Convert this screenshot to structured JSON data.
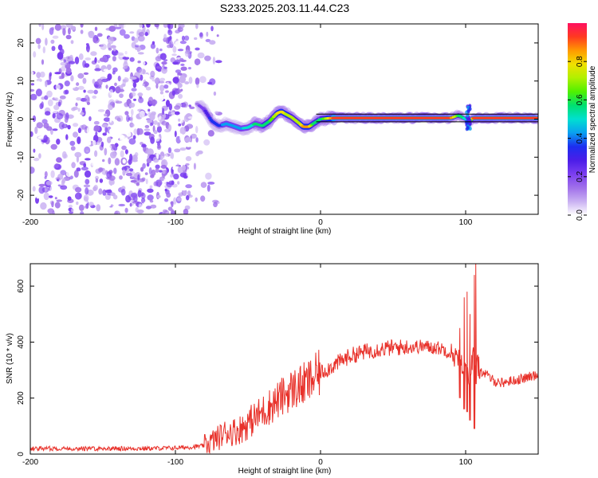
{
  "title": "S233.2025.203.11.44.C23",
  "chart_data": [
    {
      "type": "heatmap",
      "xlabel": "Height of straight line (km)",
      "ylabel": "Frequency (Hz)",
      "xlim": [
        -200,
        150
      ],
      "ylim": [
        -25,
        25
      ],
      "x_ticks": [
        -200,
        -100,
        0,
        100
      ],
      "y_ticks": [
        -20,
        -10,
        0,
        10,
        20
      ],
      "grid": false,
      "colorbar": {
        "label": "Normalized spectral amplitude",
        "range": [
          0,
          1
        ],
        "ticks": [
          "0.0",
          "0.2",
          "0.4",
          "0.6",
          "0.8"
        ],
        "colormap": [
          "#ffffff",
          "#c9b0f2",
          "#a070ea",
          "#7b3ef0",
          "#4b1ee8",
          "#1c2ef0",
          "#0aa0f0",
          "#00e0d0",
          "#00e070",
          "#50f000",
          "#b0f000",
          "#f0e000",
          "#ff9a00",
          "#ff3a20",
          "#ff1060"
        ]
      },
      "ridge": {
        "name": "frequency-ridge",
        "x": [
          -85,
          -80,
          -75,
          -70,
          -65,
          -60,
          -55,
          -50,
          -45,
          -40,
          -35,
          -30,
          -27,
          -25,
          -20,
          -15,
          -12,
          -8,
          -5,
          0,
          5,
          10,
          20,
          40,
          60,
          80,
          90,
          95,
          100,
          103,
          105,
          110,
          130,
          150
        ],
        "y": [
          4,
          2.5,
          -0.5,
          -1.8,
          -1.2,
          -1.8,
          -2.5,
          -2.2,
          -1.2,
          -1.8,
          -0.5,
          1.5,
          2,
          1.5,
          0.5,
          -1,
          -2,
          -2,
          -1.2,
          0,
          0.2,
          0.3,
          0.3,
          0.3,
          0.3,
          0.3,
          0.3,
          1,
          0,
          -0.5,
          0.3,
          0.3,
          0.3,
          0.3
        ]
      },
      "ridge_amplitude": [
        0.15,
        0.25,
        0.35,
        0.35,
        0.45,
        0.4,
        0.45,
        0.5,
        0.55,
        0.55,
        0.6,
        0.75,
        0.8,
        0.75,
        0.7,
        0.7,
        0.85,
        0.85,
        0.6,
        0.55,
        0.75,
        0.95,
        0.95,
        0.95,
        0.95,
        0.95,
        0.9,
        0.6,
        0.5,
        0.5,
        0.9,
        0.95,
        0.95,
        0.95
      ],
      "reference_lines": {
        "y": [
          1.3,
          -0.7
        ],
        "x_from": -3,
        "x_to": 150,
        "color": "#000000"
      },
      "noise_region": {
        "x_from": -200,
        "x_to": -85,
        "amplitude_max": 0.25
      }
    },
    {
      "type": "line",
      "xlabel": "Height of straight line (km)",
      "ylabel": "SNR (10 * v/v)",
      "xlim": [
        -200,
        150
      ],
      "ylim": [
        0,
        680
      ],
      "x_ticks": [
        -200,
        -100,
        0,
        100
      ],
      "y_ticks": [
        0,
        200,
        400,
        600
      ],
      "grid": false,
      "series": [
        {
          "color": "#e8312a",
          "x": [
            -200,
            -150,
            -120,
            -100,
            -90,
            -80,
            -75,
            -70,
            -65,
            -60,
            -55,
            -50,
            -45,
            -40,
            -35,
            -30,
            -25,
            -20,
            -15,
            -10,
            -5,
            0,
            10,
            20,
            30,
            40,
            50,
            60,
            70,
            80,
            85,
            90,
            95,
            100,
            103,
            105,
            107,
            110,
            115,
            120,
            125,
            130,
            140,
            150
          ],
          "y": [
            20,
            20,
            20,
            22,
            25,
            30,
            45,
            60,
            80,
            80,
            90,
            110,
            130,
            150,
            170,
            190,
            210,
            230,
            240,
            250,
            270,
            290,
            320,
            350,
            365,
            375,
            380,
            382,
            385,
            380,
            375,
            360,
            340,
            300,
            280,
            350,
            330,
            300,
            280,
            260,
            255,
            260,
            270,
            285
          ]
        }
      ],
      "spikes": {
        "x": [
          96,
          99,
          101,
          103,
          106,
          107
        ],
        "high": [
          450,
          560,
          580,
          500,
          640,
          680
        ],
        "low": [
          200,
          160,
          150,
          120,
          90,
          250
        ]
      }
    }
  ]
}
